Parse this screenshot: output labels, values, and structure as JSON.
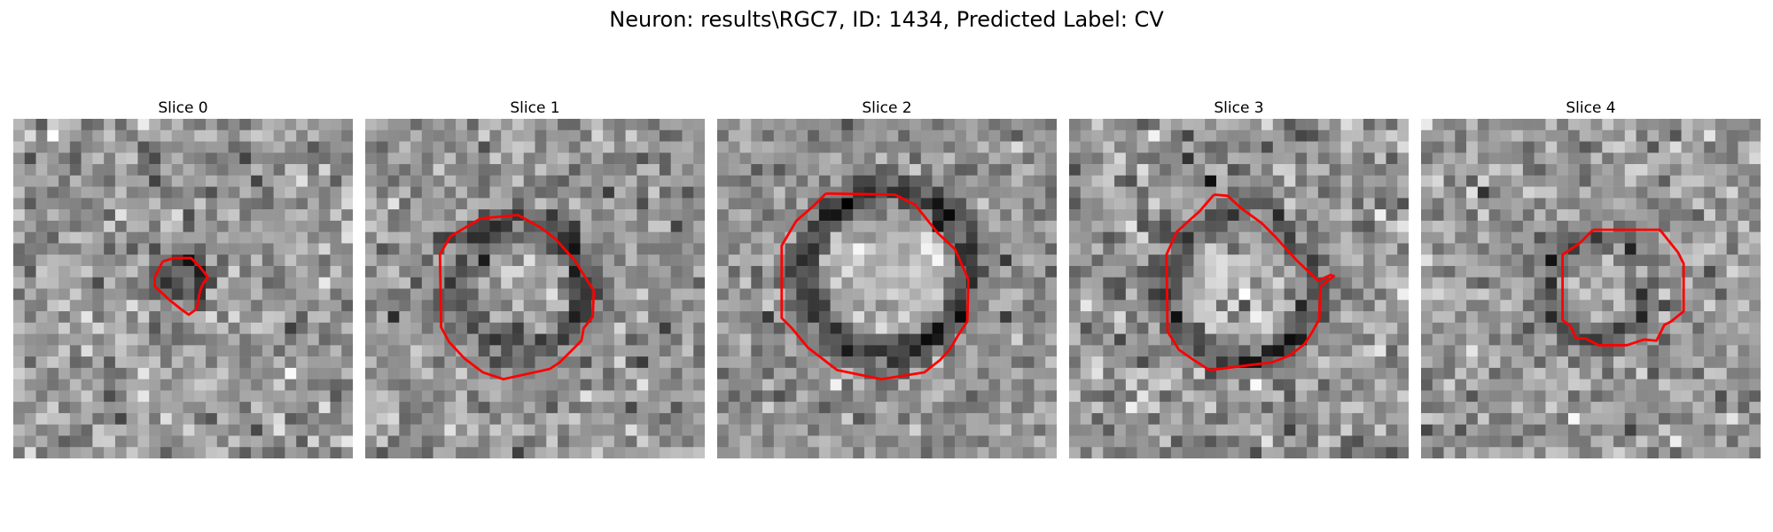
{
  "figure": {
    "title": "Neuron: results\\RGC7, ID: 1434, Predicted Label: CV"
  },
  "panels": [
    {
      "title": "Slice 0",
      "contour_color": "#ff0000"
    },
    {
      "title": "Slice 1",
      "contour_color": "#ff0000"
    },
    {
      "title": "Slice 2",
      "contour_color": "#ff0000"
    },
    {
      "title": "Slice 3",
      "contour_color": "#ff0000"
    },
    {
      "title": "Slice 4",
      "contour_color": "#ff0000"
    }
  ]
}
